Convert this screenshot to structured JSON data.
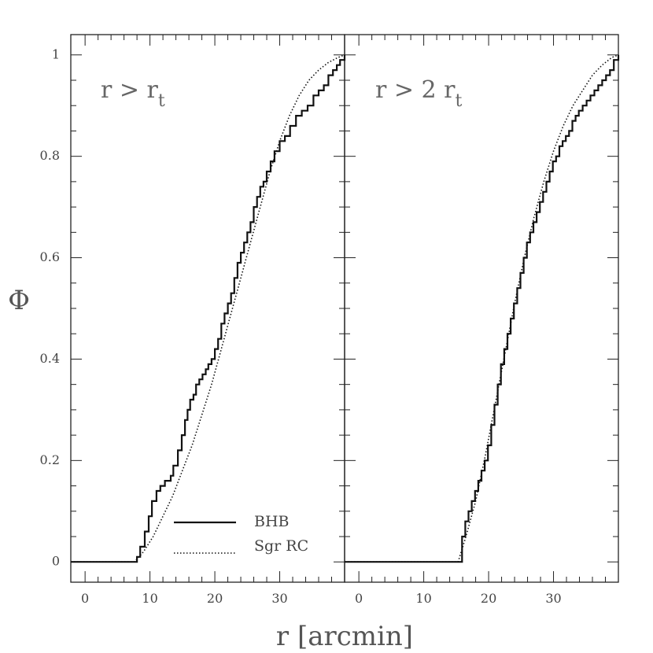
{
  "chart_data": {
    "type": "line",
    "xlabel": "r [arcmin]",
    "ylabel": "Φ",
    "ylim": [
      -0.04,
      1.04
    ],
    "yticks": [
      "0",
      "0.2",
      "0.4",
      "0.6",
      "0.8",
      "1"
    ],
    "legend": {
      "placement": "bottom-right of left panel",
      "entries": [
        "BHB",
        "Sgr RC"
      ]
    },
    "panels": [
      {
        "label": "r > r",
        "label_sub": "t",
        "xlim": [
          -2.2,
          40
        ],
        "xticks": [
          "0",
          "10",
          "20",
          "30"
        ],
        "series": [
          {
            "name": "BHB",
            "style": "solid-step",
            "x": [
              -2.2,
              7.8,
              8.0,
              8.5,
              9.2,
              9.8,
              10.3,
              11.0,
              11.6,
              12.3,
              13.2,
              13.6,
              14.3,
              14.9,
              15.4,
              15.8,
              16.2,
              16.7,
              17.1,
              17.6,
              18.1,
              18.6,
              19.0,
              19.5,
              20.0,
              20.5,
              21.0,
              21.5,
              22.0,
              22.5,
              23.0,
              23.5,
              24.0,
              24.5,
              25.0,
              25.5,
              26.0,
              26.5,
              27.0,
              27.5,
              28.0,
              28.6,
              29.2,
              30.0,
              30.8,
              31.6,
              32.5,
              33.4,
              34.3,
              35.2,
              36.0,
              36.8,
              37.5,
              38.2,
              38.8,
              39.3,
              40.0
            ],
            "y": [
              0.0,
              0.0,
              0.01,
              0.03,
              0.06,
              0.09,
              0.12,
              0.14,
              0.15,
              0.16,
              0.17,
              0.19,
              0.22,
              0.25,
              0.28,
              0.3,
              0.32,
              0.33,
              0.35,
              0.36,
              0.37,
              0.38,
              0.39,
              0.4,
              0.42,
              0.44,
              0.47,
              0.49,
              0.51,
              0.53,
              0.56,
              0.59,
              0.61,
              0.63,
              0.65,
              0.67,
              0.7,
              0.72,
              0.74,
              0.75,
              0.77,
              0.79,
              0.81,
              0.83,
              0.84,
              0.86,
              0.88,
              0.89,
              0.9,
              0.92,
              0.93,
              0.94,
              0.96,
              0.97,
              0.98,
              0.99,
              1.0
            ]
          },
          {
            "name": "Sgr RC",
            "style": "dotted",
            "x": [
              -2.2,
              7.6,
              9.0,
              10.5,
              12.0,
              13.5,
              15.0,
              16.5,
              18.0,
              19.5,
              21.0,
              22.5,
              24.0,
              25.5,
              27.0,
              28.5,
              30.0,
              31.5,
              33.0,
              34.5,
              36.0,
              37.5,
              39.0,
              40.0
            ],
            "y": [
              0.0,
              0.0,
              0.02,
              0.05,
              0.09,
              0.13,
              0.18,
              0.23,
              0.29,
              0.35,
              0.42,
              0.49,
              0.56,
              0.63,
              0.7,
              0.77,
              0.83,
              0.88,
              0.92,
              0.95,
              0.97,
              0.985,
              0.995,
              1.0
            ]
          }
        ]
      },
      {
        "label": "r > 2 r",
        "label_sub": "t",
        "xlim": [
          -2.2,
          40
        ],
        "xticks": [
          "0",
          "10",
          "20",
          "30"
        ],
        "series": [
          {
            "name": "BHB",
            "style": "solid-step",
            "x": [
              -2.2,
              15.5,
              15.9,
              16.4,
              16.9,
              17.4,
              17.9,
              18.4,
              18.9,
              19.4,
              19.9,
              20.4,
              20.9,
              21.4,
              21.9,
              22.4,
              22.9,
              23.4,
              23.9,
              24.4,
              24.9,
              25.4,
              25.9,
              26.4,
              26.9,
              27.4,
              27.9,
              28.4,
              28.9,
              29.4,
              29.9,
              30.4,
              30.9,
              31.4,
              31.9,
              32.4,
              32.9,
              33.4,
              33.9,
              34.5,
              35.1,
              35.7,
              36.3,
              36.9,
              37.5,
              38.1,
              38.7,
              39.3,
              40.0
            ],
            "y": [
              0.0,
              0.0,
              0.05,
              0.08,
              0.1,
              0.12,
              0.14,
              0.16,
              0.18,
              0.2,
              0.23,
              0.27,
              0.31,
              0.35,
              0.39,
              0.42,
              0.45,
              0.48,
              0.51,
              0.54,
              0.57,
              0.6,
              0.63,
              0.65,
              0.67,
              0.69,
              0.71,
              0.73,
              0.75,
              0.77,
              0.79,
              0.8,
              0.82,
              0.83,
              0.84,
              0.85,
              0.87,
              0.88,
              0.89,
              0.9,
              0.91,
              0.92,
              0.93,
              0.94,
              0.95,
              0.96,
              0.97,
              0.99,
              1.0
            ]
          },
          {
            "name": "Sgr RC",
            "style": "dotted",
            "x": [
              -2.2,
              15.3,
              16.5,
              18.0,
              19.5,
              21.0,
              22.5,
              24.0,
              25.5,
              27.0,
              28.5,
              30.0,
              31.5,
              33.0,
              34.5,
              36.0,
              37.5,
              39.0,
              40.0
            ],
            "y": [
              0.0,
              0.0,
              0.05,
              0.12,
              0.21,
              0.31,
              0.41,
              0.51,
              0.6,
              0.68,
              0.75,
              0.81,
              0.86,
              0.9,
              0.93,
              0.96,
              0.98,
              0.995,
              1.0
            ]
          }
        ]
      }
    ]
  }
}
